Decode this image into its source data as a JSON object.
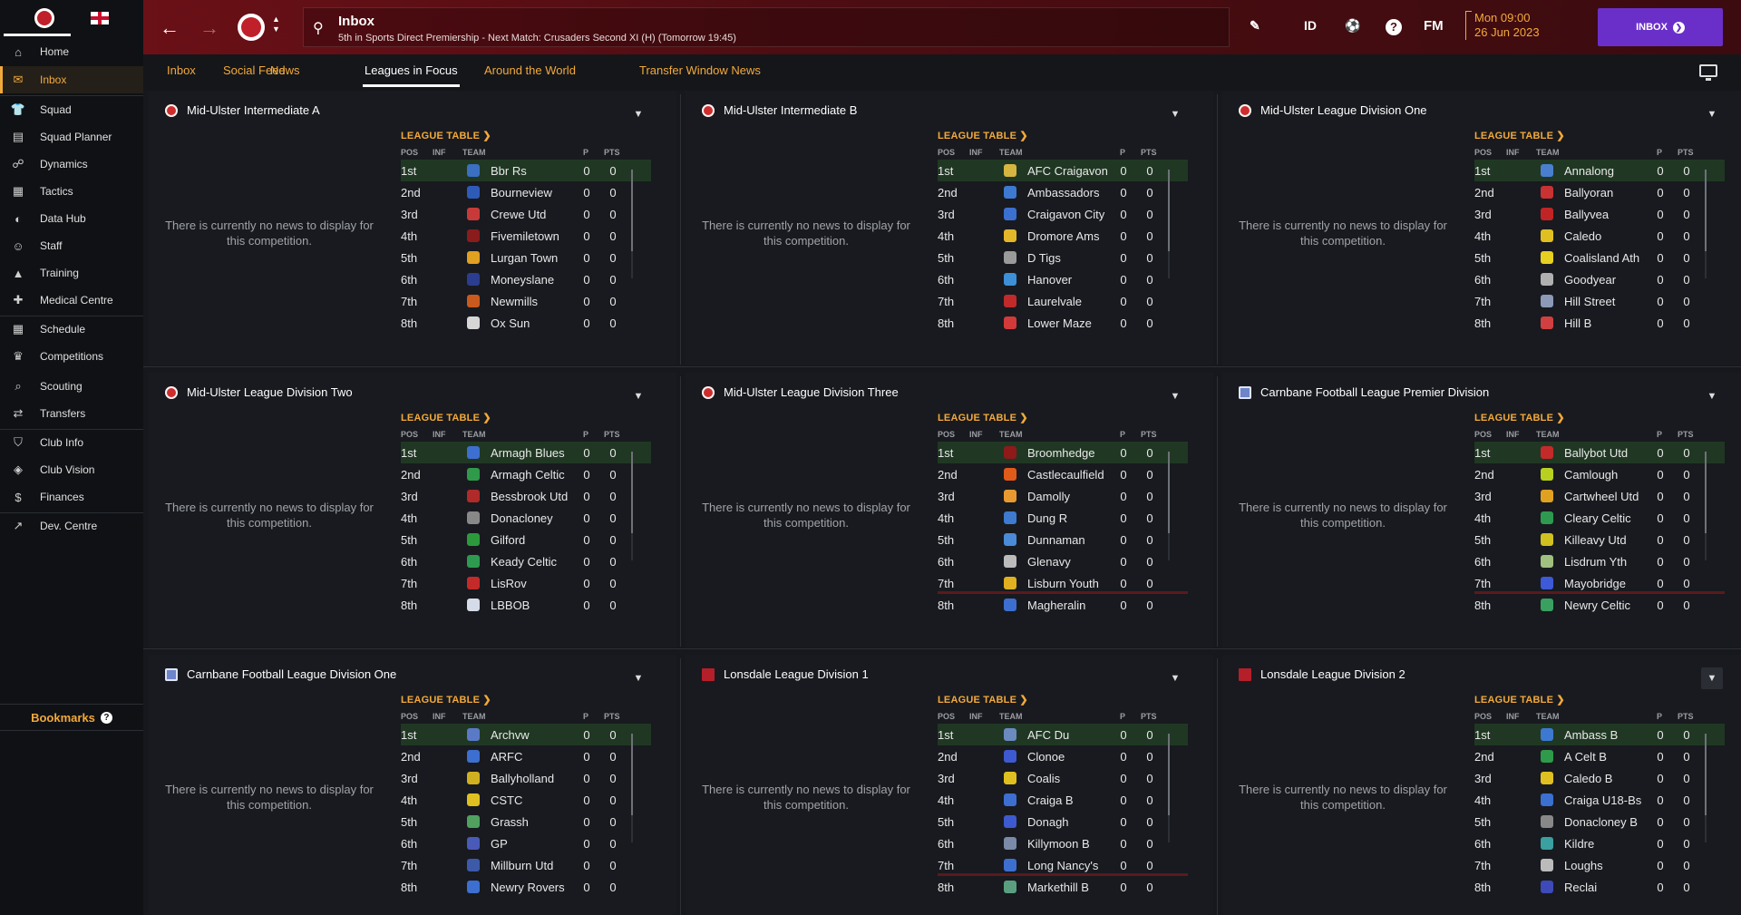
{
  "sidebar": {
    "items": [
      {
        "label": "Home",
        "icon": "home-icon"
      },
      {
        "label": "Inbox",
        "icon": "inbox-icon"
      },
      {
        "label": "Squad",
        "icon": "squad-icon"
      },
      {
        "label": "Squad Planner",
        "icon": "clipboard-icon"
      },
      {
        "label": "Dynamics",
        "icon": "dynamics-icon"
      },
      {
        "label": "Tactics",
        "icon": "tactics-icon"
      },
      {
        "label": "Data Hub",
        "icon": "data-hub-icon"
      },
      {
        "label": "Staff",
        "icon": "staff-icon"
      },
      {
        "label": "Training",
        "icon": "training-icon"
      },
      {
        "label": "Medical Centre",
        "icon": "medical-icon"
      },
      {
        "label": "Schedule",
        "icon": "calendar-icon"
      },
      {
        "label": "Competitions",
        "icon": "trophy-icon"
      },
      {
        "label": "Scouting",
        "icon": "scouting-icon"
      },
      {
        "label": "Transfers",
        "icon": "transfers-icon"
      },
      {
        "label": "Club Info",
        "icon": "shield-icon"
      },
      {
        "label": "Club Vision",
        "icon": "vision-icon"
      },
      {
        "label": "Finances",
        "icon": "finances-icon"
      },
      {
        "label": "Dev. Centre",
        "icon": "dev-centre-icon"
      }
    ],
    "bookmarks_label": "Bookmarks"
  },
  "header": {
    "title": "Inbox",
    "subtitle": "5th in Sports Direct Premiership - Next Match: Crusaders Second XI (H) (Tomorrow 19:45)",
    "id_label": "ID",
    "fm_label": "FM",
    "date_line1": "Mon 09:00",
    "date_line2": "26 Jun 2023",
    "inbox_button": "INBOX"
  },
  "tabs": [
    "Inbox",
    "Social Feed",
    "News",
    "Leagues in Focus",
    "Around the World",
    "Transfer Window News"
  ],
  "active_tab": "Leagues in Focus",
  "panel_text": {
    "league_table": "LEAGUE TABLE",
    "no_news": "There is currently no news to display for this competition.",
    "col_pos": "POS",
    "col_inf": "INF",
    "col_team": "TEAM",
    "col_p": "P",
    "col_pts": "PTS"
  },
  "panels": [
    {
      "title": "Mid-Ulster Intermediate A",
      "rows": [
        {
          "pos": "1st",
          "team": "Bbr Rs",
          "p": "0",
          "pts": "0",
          "color": "#3a6fc2"
        },
        {
          "pos": "2nd",
          "team": "Bourneview",
          "p": "0",
          "pts": "0",
          "color": "#2f5bb8"
        },
        {
          "pos": "3rd",
          "team": "Crewe Utd",
          "p": "0",
          "pts": "0",
          "color": "#c83a3a"
        },
        {
          "pos": "4th",
          "team": "Fivemiletown",
          "p": "0",
          "pts": "0",
          "color": "#8a1c1c"
        },
        {
          "pos": "5th",
          "team": "Lurgan Town",
          "p": "0",
          "pts": "0",
          "color": "#e0a021"
        },
        {
          "pos": "6th",
          "team": "Moneyslane",
          "p": "0",
          "pts": "0",
          "color": "#2b3d8f"
        },
        {
          "pos": "7th",
          "team": "Newmills",
          "p": "0",
          "pts": "0",
          "color": "#c85a1e"
        },
        {
          "pos": "8th",
          "team": "Ox Sun",
          "p": "0",
          "pts": "0",
          "color": "#d6d6d6"
        }
      ]
    },
    {
      "title": "Mid-Ulster Intermediate B",
      "rows": [
        {
          "pos": "1st",
          "team": "AFC Craigavon",
          "p": "0",
          "pts": "0",
          "color": "#d6b640"
        },
        {
          "pos": "2nd",
          "team": "Ambassadors",
          "p": "0",
          "pts": "0",
          "color": "#3d79d1"
        },
        {
          "pos": "3rd",
          "team": "Craigavon City",
          "p": "0",
          "pts": "0",
          "color": "#3b6fd0"
        },
        {
          "pos": "4th",
          "team": "Dromore Ams",
          "p": "0",
          "pts": "0",
          "color": "#e4b62a"
        },
        {
          "pos": "5th",
          "team": "D Tigs",
          "p": "0",
          "pts": "0",
          "color": "#9a9a9a"
        },
        {
          "pos": "6th",
          "team": "Hanover",
          "p": "0",
          "pts": "0",
          "color": "#3d8fd8"
        },
        {
          "pos": "7th",
          "team": "Laurelvale",
          "p": "0",
          "pts": "0",
          "color": "#c02a2a"
        },
        {
          "pos": "8th",
          "team": "Lower Maze",
          "p": "0",
          "pts": "0",
          "color": "#d23a3a"
        }
      ]
    },
    {
      "title": "Mid-Ulster League Division One",
      "rows": [
        {
          "pos": "1st",
          "team": "Annalong",
          "p": "0",
          "pts": "0",
          "color": "#4a7fd0"
        },
        {
          "pos": "2nd",
          "team": "Ballyoran",
          "p": "0",
          "pts": "0",
          "color": "#c83232"
        },
        {
          "pos": "3rd",
          "team": "Ballyvea",
          "p": "0",
          "pts": "0",
          "color": "#c02424"
        },
        {
          "pos": "4th",
          "team": "Caledo",
          "p": "0",
          "pts": "0",
          "color": "#e0c020"
        },
        {
          "pos": "5th",
          "team": "Coalisland Ath",
          "p": "0",
          "pts": "0",
          "color": "#e6d020"
        },
        {
          "pos": "6th",
          "team": "Goodyear",
          "p": "0",
          "pts": "0",
          "color": "#b0b0b0"
        },
        {
          "pos": "7th",
          "team": "Hill Street",
          "p": "0",
          "pts": "0",
          "color": "#8c9ab8"
        },
        {
          "pos": "8th",
          "team": "Hill B",
          "p": "0",
          "pts": "0",
          "color": "#d04040"
        }
      ]
    },
    {
      "title": "Mid-Ulster League Division Two",
      "rows": [
        {
          "pos": "1st",
          "team": "Armagh Blues",
          "p": "0",
          "pts": "0",
          "color": "#3d6fd0"
        },
        {
          "pos": "2nd",
          "team": "Armagh Celtic",
          "p": "0",
          "pts": "0",
          "color": "#2e9a4a"
        },
        {
          "pos": "3rd",
          "team": "Bessbrook Utd",
          "p": "0",
          "pts": "0",
          "color": "#b02a2a"
        },
        {
          "pos": "4th",
          "team": "Donacloney",
          "p": "0",
          "pts": "0",
          "color": "#888888"
        },
        {
          "pos": "5th",
          "team": "Gilford",
          "p": "0",
          "pts": "0",
          "color": "#2c9a3c"
        },
        {
          "pos": "6th",
          "team": "Keady Celtic",
          "p": "0",
          "pts": "0",
          "color": "#2e9a50"
        },
        {
          "pos": "7th",
          "team": "LisRov",
          "p": "0",
          "pts": "0",
          "color": "#c42a2a"
        },
        {
          "pos": "8th",
          "team": "LBBOB",
          "p": "0",
          "pts": "0",
          "color": "#d6dbe8"
        }
      ]
    },
    {
      "title": "Mid-Ulster League Division Three",
      "rows": [
        {
          "pos": "1st",
          "team": "Broomhedge",
          "p": "0",
          "pts": "0",
          "color": "#8e1a1a"
        },
        {
          "pos": "2nd",
          "team": "Castlecaulfield",
          "p": "0",
          "pts": "0",
          "color": "#e05a1a"
        },
        {
          "pos": "3rd",
          "team": "Damolly",
          "p": "0",
          "pts": "0",
          "color": "#e89a30"
        },
        {
          "pos": "4th",
          "team": "Dung R",
          "p": "0",
          "pts": "0",
          "color": "#3d7ad0"
        },
        {
          "pos": "5th",
          "team": "Dunnaman",
          "p": "0",
          "pts": "0",
          "color": "#4a8ad8"
        },
        {
          "pos": "6th",
          "team": "Glenavy",
          "p": "0",
          "pts": "0",
          "color": "#bbbbbb"
        },
        {
          "pos": "7th",
          "team": "Lisburn Youth",
          "p": "0",
          "pts": "0",
          "color": "#e0b020"
        },
        {
          "pos": "8th",
          "team": "Magheralin",
          "p": "0",
          "pts": "0",
          "color": "#3d6fd0"
        }
      ]
    },
    {
      "title": "Carnbane Football League Premier Division",
      "rows": [
        {
          "pos": "1st",
          "team": "Ballybot Utd",
          "p": "0",
          "pts": "0",
          "color": "#c42a2a"
        },
        {
          "pos": "2nd",
          "team": "Camlough",
          "p": "0",
          "pts": "0",
          "color": "#b8d020"
        },
        {
          "pos": "3rd",
          "team": "Cartwheel Utd",
          "p": "0",
          "pts": "0",
          "color": "#e0a020"
        },
        {
          "pos": "4th",
          "team": "Cleary Celtic",
          "p": "0",
          "pts": "0",
          "color": "#2e9a50"
        },
        {
          "pos": "5th",
          "team": "Killeavy Utd",
          "p": "0",
          "pts": "0",
          "color": "#d0c020"
        },
        {
          "pos": "6th",
          "team": "Lisdrum Yth",
          "p": "0",
          "pts": "0",
          "color": "#a0c080"
        },
        {
          "pos": "7th",
          "team": "Mayobridge",
          "p": "0",
          "pts": "0",
          "color": "#3d5ad8"
        },
        {
          "pos": "8th",
          "team": "Newry Celtic",
          "p": "0",
          "pts": "0",
          "color": "#3aa060"
        }
      ]
    },
    {
      "title": "Carnbane Football League Division One",
      "rows": [
        {
          "pos": "1st",
          "team": "Archvw",
          "p": "0",
          "pts": "0",
          "color": "#5a7ac8"
        },
        {
          "pos": "2nd",
          "team": "ARFC",
          "p": "0",
          "pts": "0",
          "color": "#3d6fd0"
        },
        {
          "pos": "3rd",
          "team": "Ballyholland",
          "p": "0",
          "pts": "0",
          "color": "#d0b020"
        },
        {
          "pos": "4th",
          "team": "CSTC",
          "p": "0",
          "pts": "0",
          "color": "#e0c020"
        },
        {
          "pos": "5th",
          "team": "Grassh",
          "p": "0",
          "pts": "0",
          "color": "#50a060"
        },
        {
          "pos": "6th",
          "team": "GP",
          "p": "0",
          "pts": "0",
          "color": "#4a5ab8"
        },
        {
          "pos": "7th",
          "team": "Millburn Utd",
          "p": "0",
          "pts": "0",
          "color": "#3d5aa8"
        },
        {
          "pos": "8th",
          "team": "Newry Rovers",
          "p": "0",
          "pts": "0",
          "color": "#3d6fd0"
        }
      ]
    },
    {
      "title": "Lonsdale League Division 1",
      "rows": [
        {
          "pos": "1st",
          "team": "AFC Du",
          "p": "0",
          "pts": "0",
          "color": "#6a8ac0"
        },
        {
          "pos": "2nd",
          "team": "Clonoe",
          "p": "0",
          "pts": "0",
          "color": "#3d5ad0"
        },
        {
          "pos": "3rd",
          "team": "Coalis",
          "p": "0",
          "pts": "0",
          "color": "#e0c020"
        },
        {
          "pos": "4th",
          "team": "Craiga B",
          "p": "0",
          "pts": "0",
          "color": "#3d6fd0"
        },
        {
          "pos": "5th",
          "team": "Donagh",
          "p": "0",
          "pts": "0",
          "color": "#3d5ad0"
        },
        {
          "pos": "6th",
          "team": "Killymoon B",
          "p": "0",
          "pts": "0",
          "color": "#7a8aa8"
        },
        {
          "pos": "7th",
          "team": "Long Nancy's",
          "p": "0",
          "pts": "0",
          "color": "#3d6fd0"
        },
        {
          "pos": "8th",
          "team": "Markethill B",
          "p": "0",
          "pts": "0",
          "color": "#5aa080"
        }
      ]
    },
    {
      "title": "Lonsdale League Division 2",
      "rows": [
        {
          "pos": "1st",
          "team": "Ambass B",
          "p": "0",
          "pts": "0",
          "color": "#3d79d1"
        },
        {
          "pos": "2nd",
          "team": "A Celt B",
          "p": "0",
          "pts": "0",
          "color": "#2e9a4a"
        },
        {
          "pos": "3rd",
          "team": "Caledo B",
          "p": "0",
          "pts": "0",
          "color": "#e0c020"
        },
        {
          "pos": "4th",
          "team": "Craiga U18-Bs",
          "p": "0",
          "pts": "0",
          "color": "#3b6fd0"
        },
        {
          "pos": "5th",
          "team": "Donacloney B",
          "p": "0",
          "pts": "0",
          "color": "#888888"
        },
        {
          "pos": "6th",
          "team": "Kildre",
          "p": "0",
          "pts": "0",
          "color": "#3aa0a0"
        },
        {
          "pos": "7th",
          "team": "Loughs",
          "p": "0",
          "pts": "0",
          "color": "#bbbbbb"
        },
        {
          "pos": "8th",
          "team": "Reclai",
          "p": "0",
          "pts": "0",
          "color": "#3d4ab8"
        }
      ]
    }
  ]
}
